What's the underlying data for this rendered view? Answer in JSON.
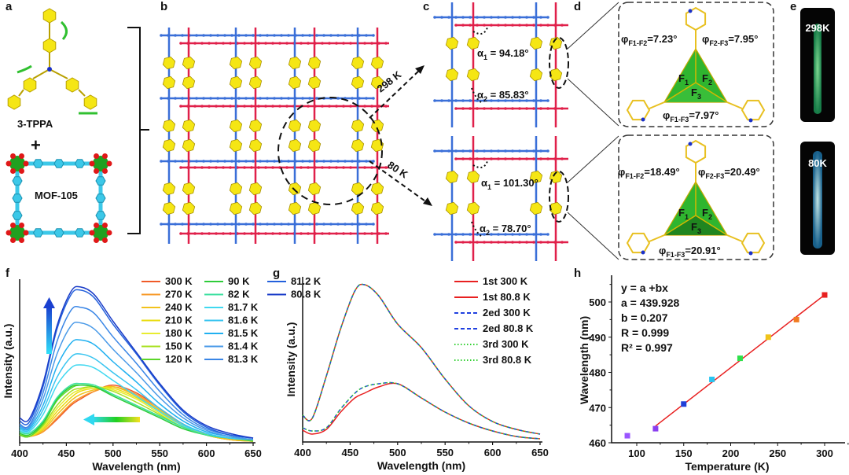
{
  "panel_labels": {
    "a": "a",
    "b": "b",
    "c": "c",
    "d": "d",
    "e": "e",
    "f": "f",
    "g": "g",
    "h": "h"
  },
  "panel_a": {
    "ligand_label": "3-TPPA",
    "plus": "+",
    "mof_label": "MOF-105"
  },
  "panel_b": {
    "arrow_top_label": "298 K",
    "arrow_bottom_label": "80 K"
  },
  "panel_c": {
    "top": {
      "a1_sym": "α",
      "a1_sub": "1",
      "a1_val": " = 94.18°",
      "a2_sym": "α",
      "a2_sub": "2",
      "a2_val": " = 85.83°"
    },
    "bottom": {
      "a1_sym": "α",
      "a1_sub": "1",
      "a1_val": " = 101.30°",
      "a2_sym": "α",
      "a2_sub": "2",
      "a2_val": " = 78.70°"
    }
  },
  "panel_d": {
    "top": {
      "phi12_sub": "F1-F2",
      "phi12_val": "=7.23°",
      "phi23_sub": "F2-F3",
      "phi23_val": "=7.95°",
      "phi13_sub": "F1-F3",
      "phi13_val": "=7.97°"
    },
    "bottom": {
      "phi12_sub": "F1-F2",
      "phi12_val": "=18.49°",
      "phi23_sub": "F2-F3",
      "phi23_val": "=20.49°",
      "phi13_sub": "F1-F3",
      "phi13_val": "=20.91°"
    },
    "symbol": "φ",
    "faces": {
      "f": "F",
      "f1": "1",
      "f2": "2",
      "f3": "3"
    }
  },
  "panel_e": {
    "top_label": "298K",
    "bottom_label": "80K",
    "top_glow": "#3ee08a",
    "bottom_glow": "#4fd8f0"
  },
  "colors": {
    "blue_chain": "#3a6fd8",
    "red_chain": "#e0204a",
    "ligand": "#f5e614",
    "face": "#2fb52f",
    "linker": "#3cc8e8",
    "oxygen": "#e01818",
    "metal": "#20a020"
  },
  "chart_data": [
    {
      "id": "f",
      "type": "line",
      "xlabel": "Wavelength (nm)",
      "ylabel": "Intensity (a.u.)",
      "xlim": [
        400,
        650
      ],
      "xticks": [
        400,
        450,
        500,
        550,
        600,
        650
      ],
      "ylim": [
        0,
        1.05
      ],
      "legend_position": "top-right",
      "x": [
        400,
        410,
        425,
        440,
        455,
        465,
        480,
        500,
        525,
        550,
        575,
        600,
        625,
        650
      ],
      "series": [
        {
          "name": "300 K",
          "color": "#f05a28",
          "values": [
            0.05,
            0.04,
            0.07,
            0.15,
            0.24,
            0.28,
            0.33,
            0.37,
            0.32,
            0.22,
            0.12,
            0.05,
            0.02,
            0.01
          ]
        },
        {
          "name": "270 K",
          "color": "#f79a2a",
          "values": [
            0.05,
            0.04,
            0.07,
            0.16,
            0.25,
            0.29,
            0.33,
            0.36,
            0.31,
            0.21,
            0.12,
            0.05,
            0.02,
            0.01
          ]
        },
        {
          "name": "240 K",
          "color": "#f2c21c",
          "values": [
            0.05,
            0.04,
            0.08,
            0.18,
            0.27,
            0.31,
            0.34,
            0.36,
            0.3,
            0.21,
            0.11,
            0.05,
            0.02,
            0.01
          ]
        },
        {
          "name": "210 K",
          "color": "#eadc10",
          "values": [
            0.05,
            0.04,
            0.09,
            0.2,
            0.29,
            0.33,
            0.35,
            0.35,
            0.29,
            0.2,
            0.11,
            0.05,
            0.03,
            0.01
          ]
        },
        {
          "name": "180 K",
          "color": "#e8ec30",
          "values": [
            0.05,
            0.04,
            0.1,
            0.22,
            0.31,
            0.34,
            0.36,
            0.34,
            0.28,
            0.19,
            0.11,
            0.05,
            0.03,
            0.01
          ]
        },
        {
          "name": "150 K",
          "color": "#a8e020",
          "values": [
            0.05,
            0.04,
            0.11,
            0.24,
            0.33,
            0.35,
            0.36,
            0.33,
            0.26,
            0.18,
            0.1,
            0.05,
            0.03,
            0.01
          ]
        },
        {
          "name": "120 K",
          "color": "#5cd62a",
          "values": [
            0.05,
            0.04,
            0.12,
            0.27,
            0.35,
            0.37,
            0.36,
            0.31,
            0.24,
            0.17,
            0.1,
            0.05,
            0.03,
            0.01
          ]
        },
        {
          "name": "90 K",
          "color": "#2ecc3a",
          "values": [
            0.06,
            0.05,
            0.13,
            0.28,
            0.36,
            0.37,
            0.36,
            0.3,
            0.23,
            0.16,
            0.09,
            0.05,
            0.03,
            0.02
          ]
        },
        {
          "name": "82 K",
          "color": "#3ee0a0",
          "values": [
            0.07,
            0.06,
            0.14,
            0.29,
            0.37,
            0.38,
            0.37,
            0.31,
            0.24,
            0.17,
            0.1,
            0.05,
            0.03,
            0.02
          ]
        },
        {
          "name": "81.7 K",
          "color": "#40d8f0",
          "values": [
            0.08,
            0.07,
            0.18,
            0.37,
            0.48,
            0.5,
            0.48,
            0.4,
            0.3,
            0.2,
            0.11,
            0.06,
            0.03,
            0.02
          ]
        },
        {
          "name": "81.6 K",
          "color": "#38c4f0",
          "values": [
            0.09,
            0.08,
            0.21,
            0.42,
            0.55,
            0.57,
            0.54,
            0.45,
            0.34,
            0.22,
            0.12,
            0.06,
            0.03,
            0.02
          ]
        },
        {
          "name": "81.5 K",
          "color": "#20b0f0",
          "values": [
            0.1,
            0.09,
            0.24,
            0.49,
            0.64,
            0.66,
            0.63,
            0.52,
            0.39,
            0.25,
            0.14,
            0.07,
            0.04,
            0.02
          ]
        },
        {
          "name": "81.4 K",
          "color": "#4a9ae8",
          "values": [
            0.11,
            0.1,
            0.28,
            0.57,
            0.75,
            0.77,
            0.73,
            0.6,
            0.45,
            0.29,
            0.16,
            0.08,
            0.04,
            0.02
          ]
        },
        {
          "name": "81.3 K",
          "color": "#3a86e6",
          "values": [
            0.12,
            0.11,
            0.32,
            0.65,
            0.85,
            0.87,
            0.83,
            0.68,
            0.51,
            0.33,
            0.18,
            0.09,
            0.05,
            0.03
          ]
        },
        {
          "name": "81.2 K",
          "color": "#2360dc",
          "values": [
            0.14,
            0.13,
            0.36,
            0.73,
            0.95,
            0.98,
            0.93,
            0.76,
            0.57,
            0.37,
            0.2,
            0.1,
            0.05,
            0.03
          ]
        },
        {
          "name": "80.8 K",
          "color": "#1a3cc8",
          "values": [
            0.16,
            0.15,
            0.38,
            0.75,
            0.97,
            1.0,
            0.95,
            0.78,
            0.58,
            0.38,
            0.21,
            0.11,
            0.06,
            0.03
          ]
        }
      ]
    },
    {
      "id": "g",
      "type": "line",
      "xlabel": "Wavelength (nm)",
      "ylabel": "Intensity (a.u.)",
      "xlim": [
        400,
        650
      ],
      "xticks": [
        400,
        450,
        500,
        550,
        600,
        650
      ],
      "ylim": [
        0,
        1.05
      ],
      "legend_position": "top-right",
      "x": [
        400,
        410,
        425,
        440,
        455,
        465,
        480,
        500,
        525,
        550,
        575,
        600,
        625,
        650
      ],
      "series": [
        {
          "name": "1st 300 K",
          "color": "#e82020",
          "dash": "solid",
          "values": [
            0.075,
            0.05,
            0.08,
            0.19,
            0.28,
            0.31,
            0.35,
            0.37,
            0.28,
            0.19,
            0.12,
            0.07,
            0.035,
            0.02
          ]
        },
        {
          "name": "1st 80.8 K",
          "color": "#e82020",
          "dash": "solid",
          "values": [
            0.17,
            0.15,
            0.42,
            0.72,
            0.96,
            1.0,
            0.93,
            0.75,
            0.6,
            0.4,
            0.23,
            0.13,
            0.08,
            0.05
          ]
        },
        {
          "name": "2ed 300 K",
          "color": "#2040e0",
          "dash": "dashed",
          "values": [
            0.09,
            0.07,
            0.09,
            0.21,
            0.31,
            0.35,
            0.37,
            0.37,
            0.28,
            0.19,
            0.12,
            0.07,
            0.035,
            0.02
          ]
        },
        {
          "name": "2ed 80.8 K",
          "color": "#2040e0",
          "dash": "dashed",
          "values": [
            0.17,
            0.15,
            0.42,
            0.72,
            0.96,
            1.0,
            0.93,
            0.75,
            0.6,
            0.4,
            0.23,
            0.13,
            0.08,
            0.05
          ]
        },
        {
          "name": "3rd 300 K",
          "color": "#30d030",
          "dash": "dotted",
          "values": [
            0.09,
            0.07,
            0.09,
            0.21,
            0.31,
            0.35,
            0.37,
            0.37,
            0.28,
            0.19,
            0.12,
            0.07,
            0.035,
            0.02
          ]
        },
        {
          "name": "3rd 80.8 K",
          "color": "#30d030",
          "dash": "dotted",
          "values": [
            0.17,
            0.15,
            0.42,
            0.72,
            0.96,
            1.0,
            0.93,
            0.75,
            0.6,
            0.4,
            0.23,
            0.13,
            0.08,
            0.05
          ]
        }
      ]
    },
    {
      "id": "h",
      "type": "scatter",
      "xlabel": "Temperature (K)",
      "ylabel": "Wavelength (nm)",
      "xlim": [
        75,
        325
      ],
      "ylim": [
        460,
        507
      ],
      "xticks": [
        100,
        150,
        200,
        250,
        300
      ],
      "yticks": [
        460,
        470,
        480,
        490,
        500
      ],
      "points": [
        {
          "x": 90,
          "y": 462,
          "color": "#9a55ff"
        },
        {
          "x": 120,
          "y": 464,
          "color": "#8a3ff0"
        },
        {
          "x": 150,
          "y": 471,
          "color": "#1f3fd8"
        },
        {
          "x": 180,
          "y": 478,
          "color": "#29c4f0"
        },
        {
          "x": 210,
          "y": 484,
          "color": "#2ee04a"
        },
        {
          "x": 240,
          "y": 490,
          "color": "#f0c419"
        },
        {
          "x": 270,
          "y": 495,
          "color": "#f07b20"
        },
        {
          "x": 300,
          "y": 502,
          "color": "#e82020"
        }
      ],
      "fit": {
        "a": 439.928,
        "b": 0.207,
        "x_range": [
          120,
          300
        ],
        "color": "#e82020"
      },
      "annotation": [
        "y = a +bx",
        "a = 439.928",
        "b = 0.207",
        "R = 0.999",
        "R² = 0.997"
      ]
    }
  ]
}
